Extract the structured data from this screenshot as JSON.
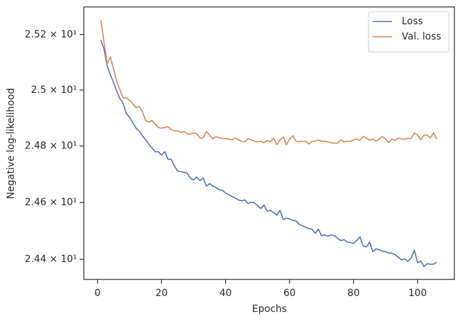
{
  "chart_data": {
    "type": "line",
    "xlabel": "Epochs",
    "ylabel": "Negative log-likelihood",
    "x": [
      1,
      2,
      3,
      4,
      5,
      6,
      7,
      8,
      9,
      10,
      11,
      12,
      13,
      14,
      15,
      16,
      17,
      18,
      19,
      20,
      21,
      22,
      23,
      24,
      25,
      26,
      27,
      28,
      29,
      30,
      31,
      32,
      33,
      34,
      35,
      36,
      37,
      38,
      39,
      40,
      41,
      42,
      43,
      44,
      45,
      46,
      47,
      48,
      49,
      50,
      51,
      52,
      53,
      54,
      55,
      56,
      57,
      58,
      59,
      60,
      61,
      62,
      63,
      64,
      65,
      66,
      67,
      68,
      69,
      70,
      71,
      72,
      73,
      74,
      75,
      76,
      77,
      78,
      79,
      80,
      81,
      82,
      83,
      84,
      85,
      86,
      87,
      88,
      89,
      90,
      91,
      92,
      93,
      94,
      95,
      96,
      97,
      98,
      99,
      100,
      101,
      102,
      103,
      104,
      105,
      106
    ],
    "series": [
      {
        "name": "Loss",
        "color": "#4c72b0",
        "values": [
          25.18,
          25.148,
          25.087,
          25.055,
          25.026,
          24.996,
          24.969,
          24.952,
          24.915,
          24.903,
          24.883,
          24.864,
          24.854,
          24.837,
          24.822,
          24.807,
          24.793,
          24.78,
          24.78,
          24.768,
          24.78,
          24.753,
          24.753,
          24.729,
          24.712,
          24.709,
          24.707,
          24.704,
          24.685,
          24.68,
          24.69,
          24.677,
          24.687,
          24.658,
          24.667,
          24.658,
          24.653,
          24.645,
          24.643,
          24.633,
          24.628,
          24.621,
          24.616,
          24.609,
          24.606,
          24.609,
          24.596,
          24.601,
          24.599,
          24.589,
          24.579,
          24.591,
          24.569,
          24.572,
          24.564,
          24.555,
          24.572,
          24.54,
          24.545,
          24.542,
          24.537,
          24.535,
          24.523,
          24.518,
          24.513,
          24.508,
          24.506,
          24.491,
          24.506,
          24.483,
          24.486,
          24.481,
          24.486,
          24.483,
          24.474,
          24.466,
          24.469,
          24.461,
          24.459,
          24.456,
          24.466,
          24.479,
          24.447,
          24.444,
          24.461,
          24.427,
          24.437,
          24.434,
          24.429,
          24.427,
          24.422,
          24.422,
          24.417,
          24.407,
          24.398,
          24.402,
          24.393,
          24.405,
          24.432,
          24.388,
          24.395,
          24.375,
          24.385,
          24.383,
          24.383,
          24.39
        ]
      },
      {
        "name": "Val. loss",
        "color": "#dd8452",
        "values": [
          25.254,
          25.173,
          25.094,
          25.119,
          25.075,
          25.031,
          25.001,
          24.972,
          24.972,
          24.964,
          24.952,
          24.937,
          24.942,
          24.923,
          24.891,
          24.886,
          24.891,
          24.879,
          24.866,
          24.864,
          24.866,
          24.869,
          24.859,
          24.854,
          24.854,
          24.849,
          24.852,
          24.844,
          24.842,
          24.847,
          24.844,
          24.829,
          24.829,
          24.852,
          24.839,
          24.825,
          24.834,
          24.829,
          24.827,
          24.827,
          24.825,
          24.822,
          24.829,
          24.822,
          24.817,
          24.815,
          24.827,
          24.822,
          24.817,
          24.815,
          24.817,
          24.812,
          24.82,
          24.815,
          24.829,
          24.805,
          24.822,
          24.832,
          24.805,
          24.825,
          24.837,
          24.817,
          24.815,
          24.817,
          24.817,
          24.807,
          24.817,
          24.817,
          24.822,
          24.817,
          24.817,
          24.815,
          24.812,
          24.81,
          24.81,
          24.822,
          24.815,
          24.817,
          24.817,
          24.822,
          24.825,
          24.82,
          24.834,
          24.829,
          24.82,
          24.825,
          24.817,
          24.825,
          24.834,
          24.825,
          24.812,
          24.825,
          24.82,
          24.829,
          24.825,
          24.825,
          24.827,
          24.827,
          24.847,
          24.839,
          24.822,
          24.839,
          24.839,
          24.829,
          24.847,
          24.825
        ]
      }
    ],
    "xlim": [
      -4.3,
      111.5
    ],
    "xticks": [
      0,
      20,
      40,
      60,
      80,
      100
    ],
    "ylim": [
      24.33,
      25.3
    ],
    "ylog": true,
    "yticks": [
      {
        "value": 24.4,
        "label": "2.44 × 10¹"
      },
      {
        "value": 24.6,
        "label": "2.46 × 10¹"
      },
      {
        "value": 24.8,
        "label": "2.48 × 10¹"
      },
      {
        "value": 25.0,
        "label": "2.5 × 10¹"
      },
      {
        "value": 25.2,
        "label": "2.52 × 10¹"
      }
    ],
    "grid": false,
    "legend": "upper right"
  }
}
